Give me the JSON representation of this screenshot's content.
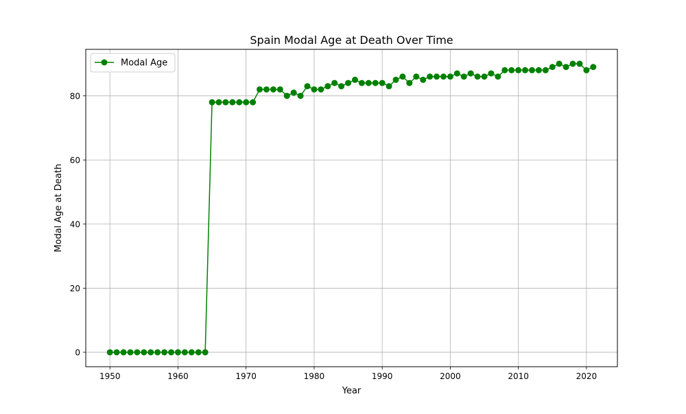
{
  "chart_data": {
    "type": "line",
    "title": "Spain Modal Age at Death Over Time",
    "xlabel": "Year",
    "ylabel": "Modal Age at Death",
    "xlim": [
      1946.45,
      2024.55
    ],
    "ylim": [
      -4.5,
      94.5
    ],
    "xticks": [
      1950,
      1960,
      1970,
      1980,
      1990,
      2000,
      2010,
      2020
    ],
    "yticks": [
      0,
      20,
      40,
      60,
      80
    ],
    "grid": true,
    "legend_position": "top-left",
    "series": [
      {
        "name": "Modal Age",
        "color": "#008000",
        "marker": "circle",
        "x": [
          1950,
          1951,
          1952,
          1953,
          1954,
          1955,
          1956,
          1957,
          1958,
          1959,
          1960,
          1961,
          1962,
          1963,
          1964,
          1965,
          1966,
          1967,
          1968,
          1969,
          1970,
          1971,
          1972,
          1973,
          1974,
          1975,
          1976,
          1977,
          1978,
          1979,
          1980,
          1981,
          1982,
          1983,
          1984,
          1985,
          1986,
          1987,
          1988,
          1989,
          1990,
          1991,
          1992,
          1993,
          1994,
          1995,
          1996,
          1997,
          1998,
          1999,
          2000,
          2001,
          2002,
          2003,
          2004,
          2005,
          2006,
          2007,
          2008,
          2009,
          2010,
          2011,
          2012,
          2013,
          2014,
          2015,
          2016,
          2017,
          2018,
          2019,
          2020,
          2021
        ],
        "y": [
          0,
          0,
          0,
          0,
          0,
          0,
          0,
          0,
          0,
          0,
          0,
          0,
          0,
          0,
          0,
          78,
          78,
          78,
          78,
          78,
          78,
          78,
          82,
          82,
          82,
          82,
          80,
          81,
          80,
          83,
          82,
          82,
          83,
          84,
          83,
          84,
          85,
          84,
          84,
          84,
          84,
          83,
          85,
          86,
          84,
          86,
          85,
          86,
          86,
          86,
          86,
          87,
          86,
          87,
          86,
          86,
          87,
          86,
          88,
          88,
          88,
          88,
          88,
          88,
          88,
          89,
          90,
          89,
          90,
          90,
          88,
          89
        ]
      }
    ]
  }
}
